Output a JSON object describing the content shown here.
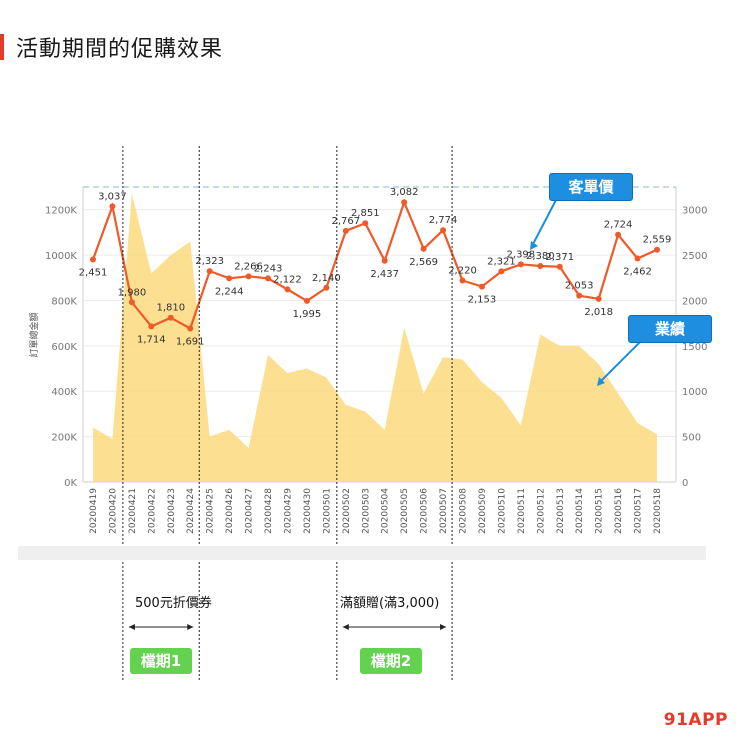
{
  "page": {
    "title": "活動期間的促購效果",
    "brand": "91APP"
  },
  "callouts": {
    "aov": "客單價",
    "revenue": "業績"
  },
  "campaigns": [
    {
      "label": "500元折價券",
      "badge": "檔期1",
      "start_date": "20200421",
      "end_date": "20200424"
    },
    {
      "label": "滿額贈(滿3,000)",
      "badge": "檔期2",
      "start_date": "20200502",
      "end_date": "20200507"
    }
  ],
  "chart_data": {
    "type": "line+area",
    "title": "",
    "xlabel": "",
    "ylabel": "訂單總金額",
    "y_left_ticks": [
      "0K",
      "200K",
      "400K",
      "600K",
      "800K",
      "1000K",
      "1200K"
    ],
    "y_left_range": [
      0,
      1300000
    ],
    "y_right_ticks": [
      "0",
      "500",
      "1000",
      "1500",
      "2000",
      "2500",
      "3000"
    ],
    "y_right_range": [
      0,
      3250
    ],
    "x": [
      "20200419",
      "20200420",
      "20200421",
      "20200422",
      "20200423",
      "20200424",
      "20200425",
      "20200426",
      "20200427",
      "20200428",
      "20200429",
      "20200430",
      "20200501",
      "20200502",
      "20200503",
      "20200504",
      "20200505",
      "20200506",
      "20200507",
      "20200508",
      "20200509",
      "20200510",
      "20200511",
      "20200512",
      "20200513",
      "20200514",
      "20200515",
      "20200516",
      "20200517",
      "20200518"
    ],
    "series": [
      {
        "type": "area",
        "axis": "left",
        "color": "#fbd97c",
        "values": [
          240000,
          190000,
          1270000,
          920000,
          1000000,
          1060000,
          200000,
          230000,
          150000,
          560000,
          480000,
          500000,
          460000,
          340000,
          310000,
          230000,
          680000,
          390000,
          550000,
          540000,
          440000,
          370000,
          250000,
          650000,
          600000,
          600000,
          520000,
          390000,
          260000,
          210000
        ]
      },
      {
        "type": "line",
        "axis": "right",
        "color": "#ef5a2a",
        "values": [
          2451,
          3037,
          1980,
          1714,
          1810,
          1691,
          2323,
          2244,
          2266,
          2243,
          2122,
          1995,
          2140,
          2767,
          2851,
          2437,
          3082,
          2569,
          2774,
          2220,
          2153,
          2321,
          2398,
          2380,
          2371,
          2053,
          2018,
          2724,
          2462,
          2559
        ],
        "labels": [
          "2,451",
          "3,037",
          "1,980",
          "1,714",
          "1,810",
          "1,691",
          "2,323",
          "2,244",
          "2,266",
          "2,243",
          "2,122",
          "1,995",
          "2,140",
          "2,767",
          "2,851",
          "2,437",
          "3,082",
          "2,569",
          "2,774",
          "2,220",
          "2,153",
          "2,321",
          "2,398",
          "2,380",
          "2,371",
          "2,053",
          "2,018",
          "2,724",
          "2,462",
          "2,559"
        ]
      }
    ],
    "reference_line": {
      "axis": "right",
      "value": 3250,
      "style": "dashed"
    }
  }
}
